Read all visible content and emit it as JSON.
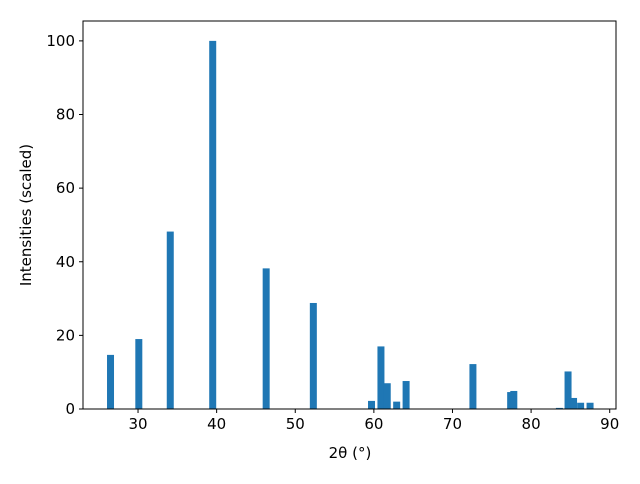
{
  "chart_data": {
    "type": "bar",
    "x_label": "2θ (°)",
    "y_label": "Intensities (scaled)",
    "x": [
      26.5,
      30.1,
      34.1,
      39.5,
      46.3,
      52.3,
      59.7,
      60.9,
      61.7,
      62.9,
      64.1,
      72.6,
      77.4,
      77.8,
      83.6,
      84.7,
      85.4,
      86.3,
      87.5
    ],
    "values": [
      14.7,
      19.0,
      48.2,
      100,
      38.2,
      28.8,
      2.2,
      17.0,
      7.0,
      2.0,
      7.6,
      12.2,
      4.6,
      4.9,
      0.3,
      10.2,
      3.0,
      1.7,
      1.7
    ],
    "color": "#1f77b4",
    "xlim": [
      23.0,
      90.8
    ],
    "xticks": [
      30,
      40,
      50,
      60,
      70,
      80,
      90
    ],
    "ylim": [
      0,
      105.4
    ],
    "yticks": [
      0,
      20,
      40,
      60,
      80,
      100
    ]
  }
}
